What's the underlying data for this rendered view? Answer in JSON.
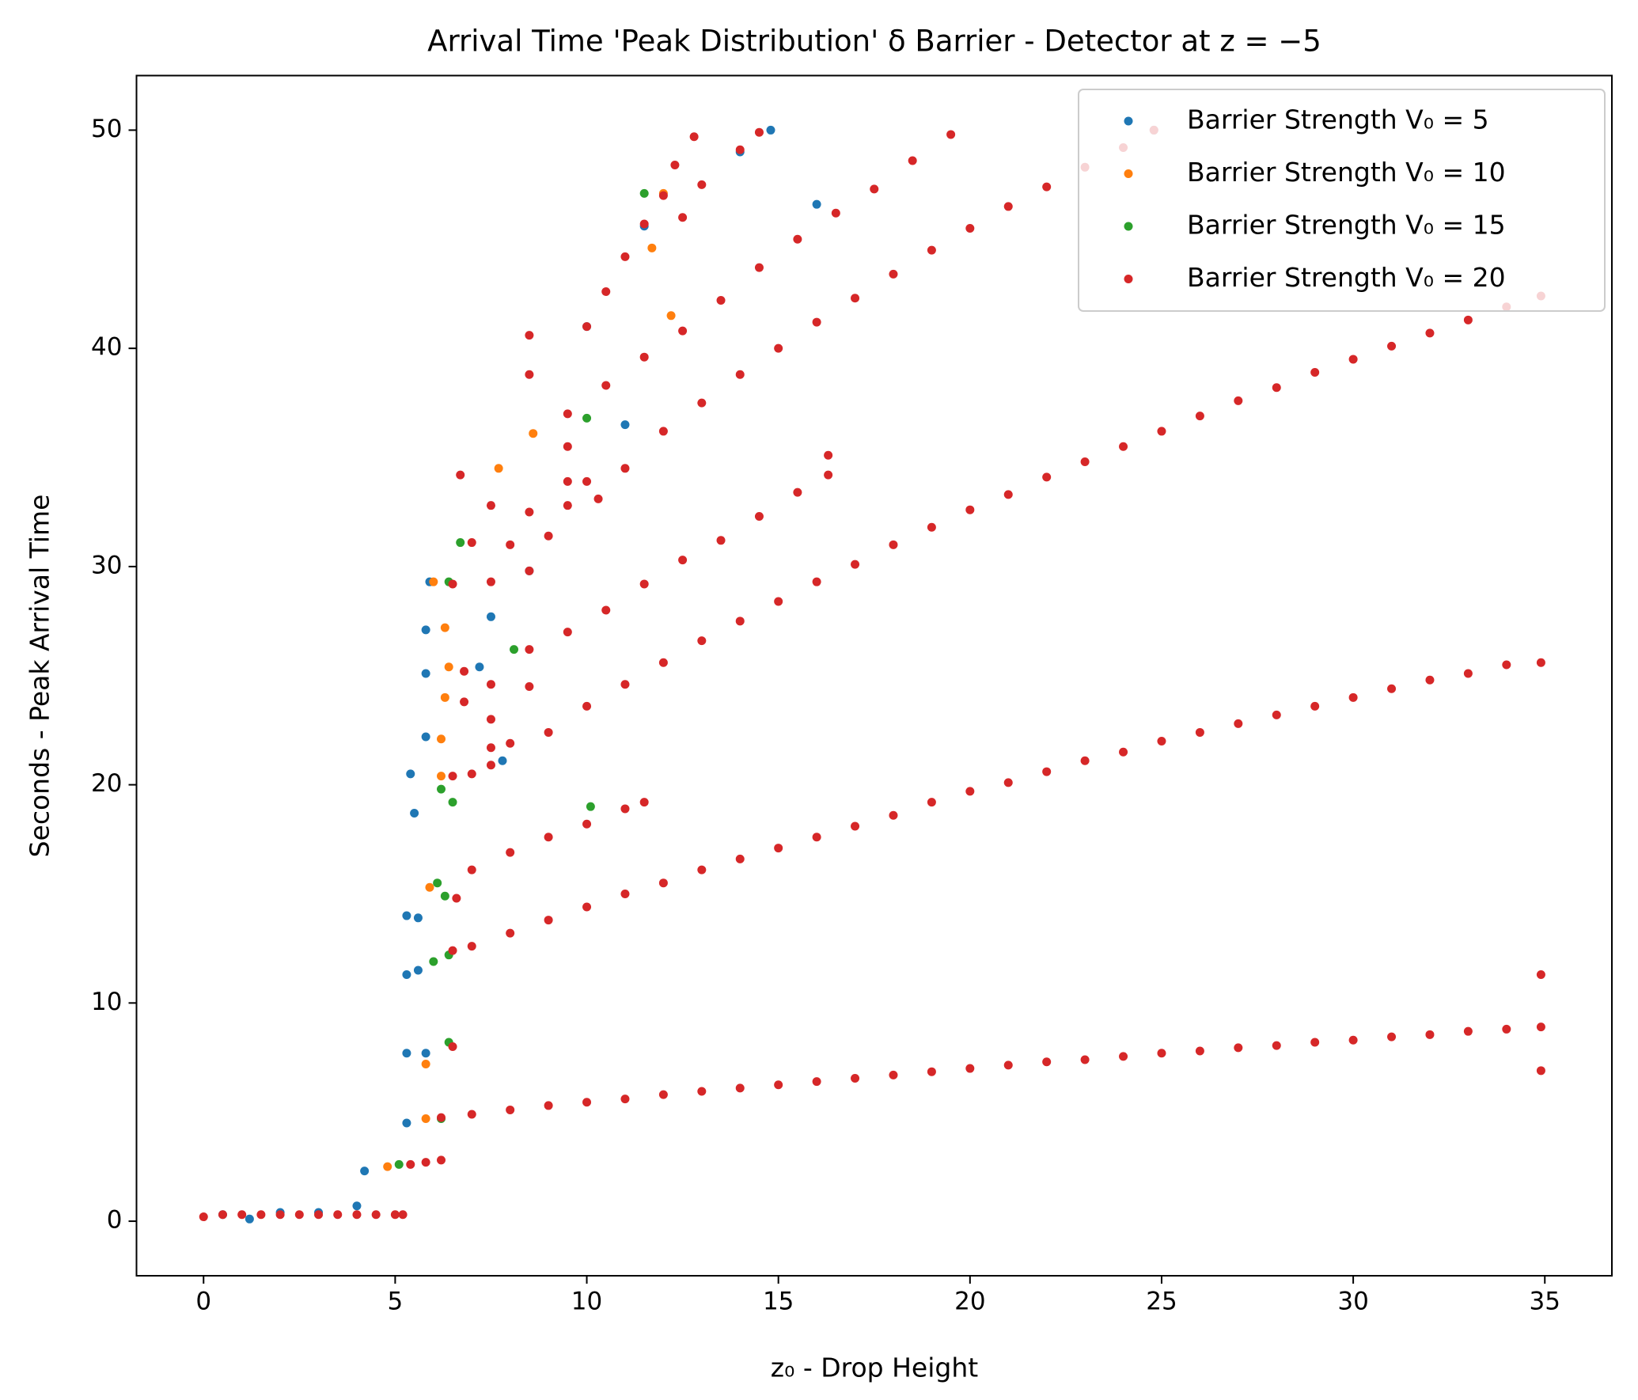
{
  "chart_data": {
    "type": "scatter",
    "title": "Arrival Time 'Peak Distribution' δ Barrier - Detector at z = −5",
    "x_label": "z₀ - Drop Height",
    "y_label": "Seconds - Peak Arrival Time",
    "xlim": [
      -1.75,
      36.75
    ],
    "ylim": [
      -2.5,
      52.5
    ],
    "xticks": [
      0,
      5,
      10,
      15,
      20,
      25,
      30,
      35
    ],
    "yticks": [
      0,
      10,
      20,
      30,
      40,
      50
    ],
    "grid": false,
    "legend": "upper right",
    "series": [
      {
        "name": "Barrier Strength V₀ = 5",
        "color": "#1f77b4",
        "x": [
          0.5,
          1.2,
          2,
          3,
          4,
          4.2,
          5.3,
          5.3,
          5.8,
          5.3,
          5.6,
          5.3,
          5.6,
          5.5,
          5.4,
          5.8,
          5.8,
          5.8,
          5.9,
          7.5,
          7.2,
          7.8,
          8.5,
          10,
          11,
          11.5,
          14,
          14.8,
          16,
          24.8
        ],
        "values": [
          0.3,
          0.1,
          0.4,
          0.4,
          0.7,
          2.3,
          4.5,
          7.7,
          7.7,
          11.3,
          11.5,
          14.0,
          13.9,
          18.7,
          20.5,
          22.2,
          25.1,
          27.1,
          29.3,
          27.7,
          25.4,
          21.1,
          29.8,
          41,
          36.5,
          45.6,
          49,
          50,
          46.6,
          50
        ]
      },
      {
        "name": "Barrier Strength V₀ = 10",
        "color": "#ff7f0e",
        "x": [
          4.8,
          5.8,
          5.8,
          5.9,
          6.2,
          6.2,
          6.4,
          6.3,
          6.3,
          6.0,
          7.7,
          8.6,
          12.2,
          11.7,
          12
        ],
        "values": [
          2.5,
          4.7,
          7.2,
          15.3,
          20.4,
          22.1,
          25.4,
          24,
          27.2,
          29.3,
          34.5,
          36.1,
          41.5,
          44.6,
          47.1
        ]
      },
      {
        "name": "Barrier Strength V₀ = 15",
        "color": "#2ca02c",
        "x": [
          5.1,
          6.2,
          6,
          6.4,
          6.1,
          6.3,
          6.2,
          6.5,
          6.4,
          6.4,
          6.7,
          8.1,
          10,
          10.1,
          11.5
        ],
        "values": [
          2.6,
          4.7,
          11.9,
          12.2,
          15.5,
          14.9,
          19.8,
          19.2,
          8.2,
          29.3,
          31.1,
          26.2,
          36.8,
          19,
          47.1
        ]
      },
      {
        "name": "Barrier Strength V₀ = 20",
        "color": "#d62728",
        "x": [
          0,
          0.5,
          1,
          1.5,
          2,
          2.5,
          3,
          3.5,
          4,
          4.5,
          5,
          5.2,
          5.4,
          5.8,
          6.2,
          6.5,
          6.6,
          6.2,
          7,
          8,
          9,
          10,
          11,
          12,
          13,
          14,
          15,
          16,
          17,
          18,
          19,
          20,
          21,
          22,
          23,
          24,
          25,
          26,
          27,
          28,
          29,
          30,
          31,
          32,
          33,
          34,
          34.9,
          34.9,
          34.9,
          6.5,
          7,
          8,
          9,
          10,
          11,
          12,
          13,
          14,
          15,
          16,
          17,
          18,
          19,
          20,
          21,
          22,
          23,
          24,
          25,
          26,
          27,
          28,
          29,
          30,
          31,
          32,
          33,
          34,
          34.9,
          7.5,
          8,
          9,
          10,
          11,
          12,
          13,
          14,
          15,
          16,
          17,
          18,
          19,
          20,
          21,
          22,
          23,
          24,
          25,
          26,
          27,
          28,
          29,
          30,
          31,
          32,
          33,
          34,
          34.9,
          9.5,
          10,
          11,
          12,
          13,
          14,
          15,
          16,
          17,
          18,
          19,
          20,
          21,
          22,
          23,
          24,
          24.8,
          6.5,
          7,
          7.5,
          6.5,
          7.5,
          8.5,
          7,
          8,
          9,
          7.5,
          8.5,
          9.5,
          10.3,
          6.8,
          7.5,
          8.5,
          6.8,
          7.5,
          7,
          8,
          9,
          10,
          11,
          11.5,
          8.5,
          9.5,
          10.5,
          11.5,
          12.5,
          13.5,
          14.5,
          15.5,
          16.3,
          16.3,
          9.5,
          10.5,
          11.5,
          12.5,
          13.5,
          14.5,
          15.5,
          16.5,
          17.5,
          18.5,
          19.5,
          8.5,
          8.5,
          10,
          10.5,
          11,
          11.5,
          12,
          12.3,
          12.8,
          14,
          14.5,
          13,
          12.5,
          9.5,
          6.7
        ],
        "values": [
          0.2,
          0.3,
          0.3,
          0.3,
          0.3,
          0.3,
          0.3,
          0.3,
          0.3,
          0.3,
          0.3,
          0.3,
          2.6,
          2.7,
          2.8,
          8.0,
          14.8,
          4.75,
          4.9,
          5.1,
          5.3,
          5.45,
          5.6,
          5.8,
          5.95,
          6.1,
          6.25,
          6.4,
          6.55,
          6.7,
          6.85,
          7.0,
          7.15,
          7.3,
          7.4,
          7.55,
          7.7,
          7.8,
          7.95,
          8.05,
          8.2,
          8.3,
          8.45,
          8.55,
          8.7,
          8.8,
          8.9,
          11.3,
          6.9,
          12.4,
          12.6,
          13.2,
          13.8,
          14.4,
          15.0,
          15.5,
          16.1,
          16.6,
          17.1,
          17.6,
          18.1,
          18.6,
          19.2,
          19.7,
          20.1,
          20.6,
          21.1,
          21.5,
          22.0,
          22.4,
          22.8,
          23.2,
          23.6,
          24.0,
          24.4,
          24.8,
          25.1,
          25.5,
          25.6,
          21.7,
          21.9,
          22.4,
          23.6,
          24.6,
          25.6,
          26.6,
          27.5,
          28.4,
          29.3,
          30.1,
          31.0,
          31.8,
          32.6,
          33.3,
          34.1,
          34.8,
          35.5,
          36.2,
          36.9,
          37.6,
          38.2,
          38.9,
          39.5,
          40.1,
          40.7,
          41.3,
          41.9,
          42.4,
          33.9,
          33.9,
          34.5,
          36.2,
          37.5,
          38.8,
          40.0,
          41.2,
          42.3,
          43.4,
          44.5,
          45.5,
          46.5,
          47.4,
          48.3,
          49.2,
          50.0,
          20.4,
          20.5,
          20.9,
          29.2,
          29.3,
          29.8,
          31.1,
          31.0,
          31.4,
          32.8,
          32.5,
          32.8,
          33.1,
          25.2,
          24.6,
          24.5,
          23.8,
          23.0,
          16.1,
          16.9,
          17.6,
          18.2,
          18.9,
          19.2,
          26.2,
          27.0,
          28.0,
          29.2,
          30.3,
          31.2,
          32.3,
          33.4,
          34.2,
          35.1,
          37.0,
          38.3,
          39.6,
          40.8,
          42.2,
          43.7,
          45.0,
          46.2,
          47.3,
          48.6,
          49.8,
          38.8,
          40.6,
          41,
          42.6,
          44.2,
          45.7,
          47,
          48.4,
          49.7,
          49.1,
          49.9,
          47.5,
          46,
          35.5,
          34.2
        ]
      }
    ]
  }
}
